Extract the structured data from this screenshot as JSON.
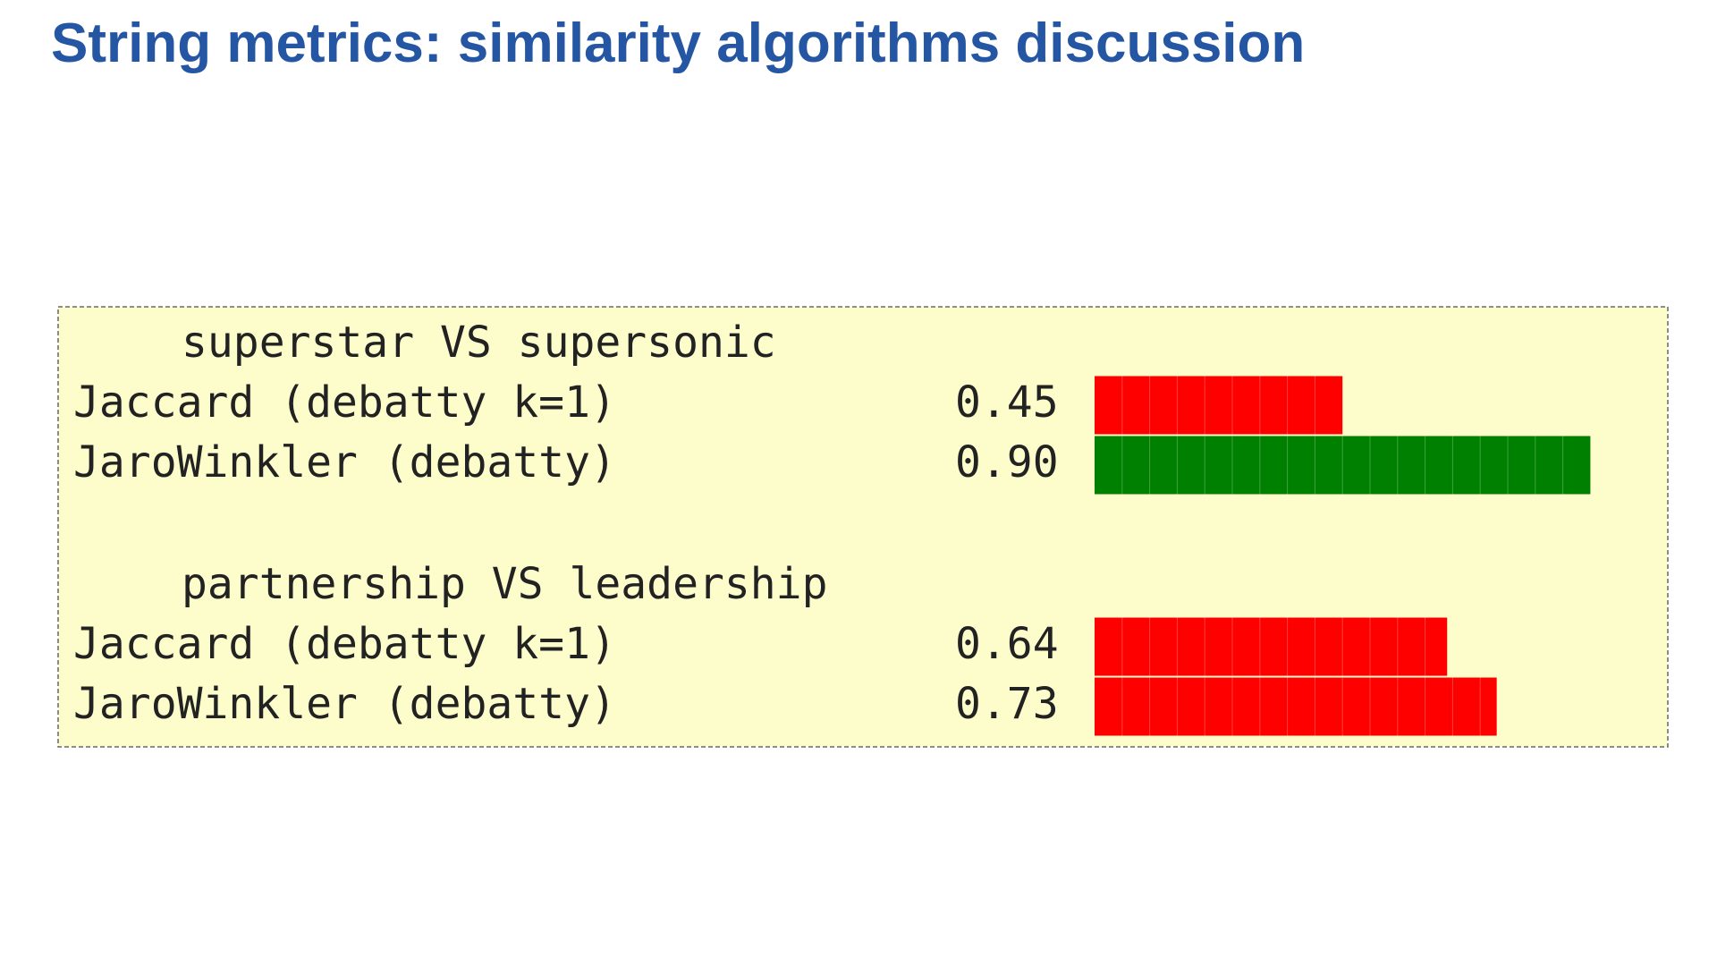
{
  "title": "String metrics: similarity algorithms discussion",
  "groups": [
    {
      "heading": "superstar VS supersonic",
      "rows": [
        {
          "label": "Jaccard (debatty k=1)",
          "value": 0.45,
          "value_label": "0.45",
          "color": "#ff0000"
        },
        {
          "label": "JaroWinkler (debatty)",
          "value": 0.9,
          "value_label": "0.90",
          "color": "#008000"
        }
      ]
    },
    {
      "heading": "partnership VS leadership",
      "rows": [
        {
          "label": "Jaccard (debatty k=1)",
          "value": 0.64,
          "value_label": "0.64",
          "color": "#ff0000"
        },
        {
          "label": "JaroWinkler (debatty)",
          "value": 0.73,
          "value_label": "0.73",
          "color": "#ff0000"
        }
      ]
    }
  ]
}
